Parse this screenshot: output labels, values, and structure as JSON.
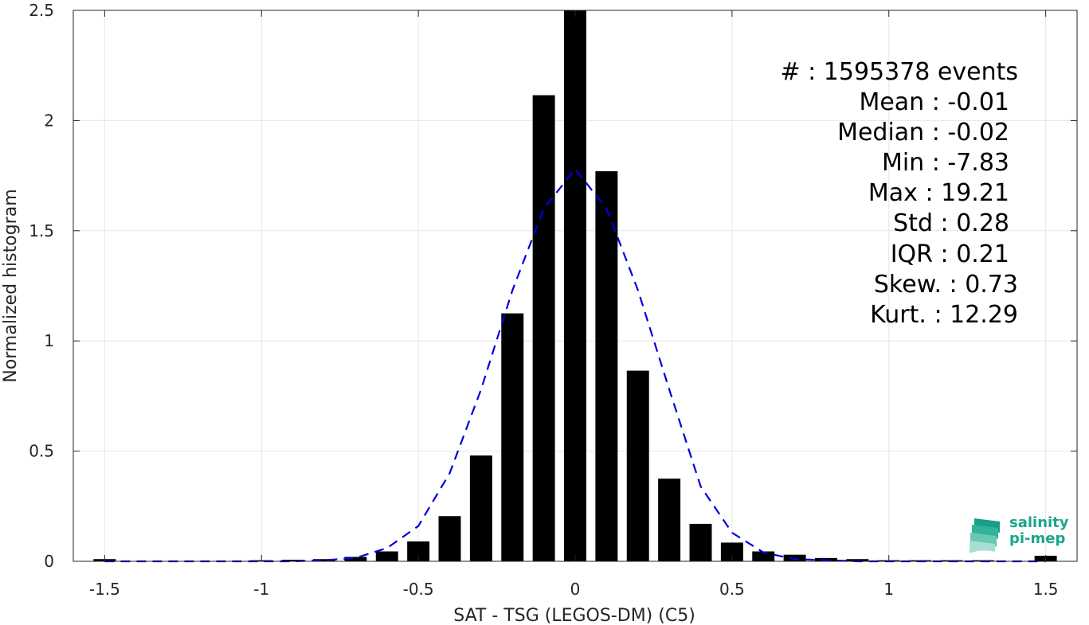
{
  "chart_data": {
    "type": "bar",
    "xlabel": "SAT - TSG (LEGOS-DM) (C5)",
    "ylabel": "Normalized histogram",
    "xlim": [
      -1.6,
      1.6
    ],
    "ylim": [
      0,
      2.5
    ],
    "grid": true,
    "x_ticks": [
      "-1.5",
      "-1",
      "-0.5",
      "0",
      "0.5",
      "1",
      "1.5"
    ],
    "y_ticks": [
      "0",
      "0.5",
      "1",
      "1.5",
      "2",
      "2.5"
    ],
    "bar_color": "#000000",
    "curve_color": "#0000e0",
    "bars": {
      "x": [
        -1.5,
        -1.4,
        -1.3,
        -1.2,
        -1.1,
        -1.0,
        -0.9,
        -0.8,
        -0.7,
        -0.6,
        -0.5,
        -0.4,
        -0.3,
        -0.2,
        -0.1,
        0.0,
        0.1,
        0.2,
        0.3,
        0.4,
        0.5,
        0.6,
        0.7,
        0.8,
        0.9,
        1.0,
        1.1,
        1.2,
        1.3,
        1.4,
        1.5
      ],
      "values": [
        0.01,
        0.0,
        0.0,
        0.0,
        0.0,
        0.005,
        0.007,
        0.01,
        0.02,
        0.045,
        0.09,
        0.205,
        0.48,
        1.125,
        2.115,
        2.5,
        1.77,
        0.865,
        0.375,
        0.17,
        0.085,
        0.045,
        0.03,
        0.015,
        0.01,
        0.005,
        0.005,
        0.005,
        0.005,
        0.0,
        0.025
      ]
    },
    "fit_curve": {
      "style": "dashed",
      "x": [
        -1.5,
        -1.4,
        -1.3,
        -1.2,
        -1.1,
        -1.0,
        -0.9,
        -0.8,
        -0.7,
        -0.6,
        -0.5,
        -0.4,
        -0.3,
        -0.2,
        -0.1,
        0.0,
        0.1,
        0.2,
        0.3,
        0.4,
        0.5,
        0.6,
        0.7,
        0.8,
        0.9,
        1.0,
        1.1,
        1.2,
        1.3,
        1.4,
        1.5
      ],
      "y": [
        0.0,
        0.0,
        0.0,
        0.0,
        0.0,
        0.0,
        0.0,
        0.005,
        0.015,
        0.06,
        0.16,
        0.4,
        0.78,
        1.23,
        1.6,
        1.78,
        1.6,
        1.23,
        0.78,
        0.34,
        0.13,
        0.04,
        0.01,
        0.005,
        0.0,
        0.0,
        0.0,
        0.0,
        0.0,
        0.0,
        0.0
      ]
    }
  },
  "stats": {
    "events": "#  : 1595378 events",
    "mean": "Mean : -0.01",
    "median": "Median : -0.02",
    "min": "Min : -7.83",
    "max": "Max : 19.21",
    "std": "Std : 0.28",
    "iqr": "IQR : 0.21",
    "skew": "Skew. : 0.73",
    "kurt": "Kurt. : 12.29"
  },
  "logo": {
    "line1": "salinity",
    "line2": "pi-mep",
    "color": "#1aa58a"
  }
}
